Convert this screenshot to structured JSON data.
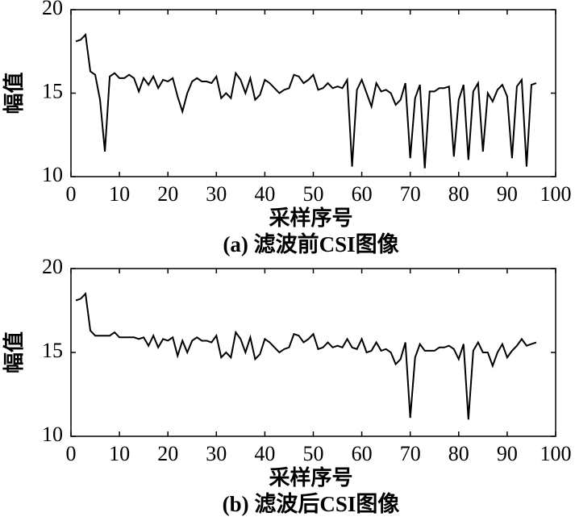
{
  "chart_data": [
    {
      "type": "line",
      "caption": "(a) 滤波前CSI图像",
      "xlabel": "采样序号",
      "ylabel": "幅值",
      "color": "#000000",
      "x": [
        1,
        2,
        3,
        4,
        5,
        6,
        7,
        8,
        9,
        10,
        11,
        12,
        13,
        14,
        15,
        16,
        17,
        18,
        19,
        20,
        21,
        22,
        23,
        24,
        25,
        26,
        27,
        28,
        29,
        30,
        31,
        32,
        33,
        34,
        35,
        36,
        37,
        38,
        39,
        40,
        41,
        42,
        43,
        44,
        45,
        46,
        47,
        48,
        49,
        50,
        51,
        52,
        53,
        54,
        55,
        56,
        57,
        58,
        59,
        60,
        61,
        62,
        63,
        64,
        65,
        66,
        67,
        68,
        69,
        70,
        71,
        72,
        73,
        74,
        75,
        76,
        77,
        78,
        79,
        80,
        81,
        82,
        83,
        84,
        85,
        86,
        87,
        88,
        89,
        90,
        91,
        92,
        93,
        94,
        95,
        96
      ],
      "values": [
        18.1,
        18.2,
        18.5,
        16.3,
        16.1,
        14.6,
        11.5,
        16.0,
        16.2,
        15.9,
        15.9,
        16.1,
        15.9,
        15.1,
        15.9,
        15.5,
        16.0,
        15.3,
        15.8,
        15.7,
        15.9,
        14.8,
        13.9,
        15.0,
        15.7,
        15.9,
        15.7,
        15.7,
        15.6,
        16.0,
        14.7,
        15.0,
        14.7,
        16.2,
        15.8,
        15.0,
        15.9,
        14.6,
        14.9,
        15.8,
        15.6,
        15.3,
        15.0,
        15.2,
        15.3,
        16.1,
        16.0,
        15.6,
        15.8,
        16.1,
        15.2,
        15.3,
        15.6,
        15.3,
        15.4,
        15.3,
        15.8,
        10.6,
        15.2,
        15.8,
        15.0,
        14.2,
        15.6,
        15.1,
        15.2,
        15.0,
        14.3,
        14.6,
        15.6,
        11.1,
        14.7,
        15.5,
        10.5,
        15.1,
        15.1,
        15.3,
        15.3,
        15.4,
        11.2,
        14.6,
        15.5,
        11.0,
        15.1,
        15.6,
        11.5,
        15.0,
        14.5,
        15.2,
        15.5,
        14.8,
        11.1,
        15.4,
        15.8,
        10.6,
        15.5,
        15.6
      ],
      "xlim": [
        0,
        100
      ],
      "xticks": [
        0,
        10,
        20,
        30,
        40,
        50,
        60,
        70,
        80,
        90,
        100
      ],
      "ylim": [
        10,
        20
      ],
      "yticks": [
        10,
        15,
        20
      ]
    },
    {
      "type": "line",
      "caption": "(b) 滤波后CSI图像",
      "xlabel": "采样序号",
      "ylabel": "幅值",
      "color": "#000000",
      "x": [
        1,
        2,
        3,
        4,
        5,
        6,
        7,
        8,
        9,
        10,
        11,
        12,
        13,
        14,
        15,
        16,
        17,
        18,
        19,
        20,
        21,
        22,
        23,
        24,
        25,
        26,
        27,
        28,
        29,
        30,
        31,
        32,
        33,
        34,
        35,
        36,
        37,
        38,
        39,
        40,
        41,
        42,
        43,
        44,
        45,
        46,
        47,
        48,
        49,
        50,
        51,
        52,
        53,
        54,
        55,
        56,
        57,
        58,
        59,
        60,
        61,
        62,
        63,
        64,
        65,
        66,
        67,
        68,
        69,
        70,
        71,
        72,
        73,
        74,
        75,
        76,
        77,
        78,
        79,
        80,
        81,
        82,
        83,
        84,
        85,
        86,
        87,
        88,
        89,
        90,
        91,
        92,
        93,
        94,
        95,
        96
      ],
      "values": [
        18.1,
        18.2,
        18.5,
        16.3,
        16.0,
        16.0,
        16.0,
        16.0,
        16.2,
        15.9,
        15.9,
        15.9,
        15.9,
        15.8,
        15.9,
        15.4,
        16.0,
        15.3,
        15.8,
        15.7,
        15.9,
        14.8,
        15.7,
        15.0,
        15.7,
        15.9,
        15.7,
        15.7,
        15.6,
        16.0,
        14.7,
        15.0,
        14.7,
        16.2,
        15.8,
        15.0,
        15.9,
        14.6,
        14.9,
        15.8,
        15.6,
        15.3,
        15.0,
        15.2,
        15.3,
        16.1,
        16.0,
        15.6,
        15.8,
        16.1,
        15.2,
        15.3,
        15.6,
        15.3,
        15.4,
        15.3,
        15.8,
        15.3,
        15.2,
        15.8,
        15.0,
        15.1,
        15.6,
        15.1,
        15.2,
        15.0,
        14.3,
        14.6,
        15.6,
        11.1,
        14.7,
        15.5,
        15.1,
        15.1,
        15.1,
        15.3,
        15.3,
        15.4,
        15.2,
        14.6,
        15.5,
        11.0,
        15.1,
        15.6,
        15.0,
        15.0,
        14.2,
        15.0,
        15.5,
        14.7,
        15.1,
        15.4,
        15.8,
        15.4,
        15.5,
        15.6
      ],
      "xlim": [
        0,
        100
      ],
      "xticks": [
        0,
        10,
        20,
        30,
        40,
        50,
        60,
        70,
        80,
        90,
        100
      ],
      "ylim": [
        10,
        20
      ],
      "yticks": [
        10,
        15,
        20
      ]
    }
  ]
}
